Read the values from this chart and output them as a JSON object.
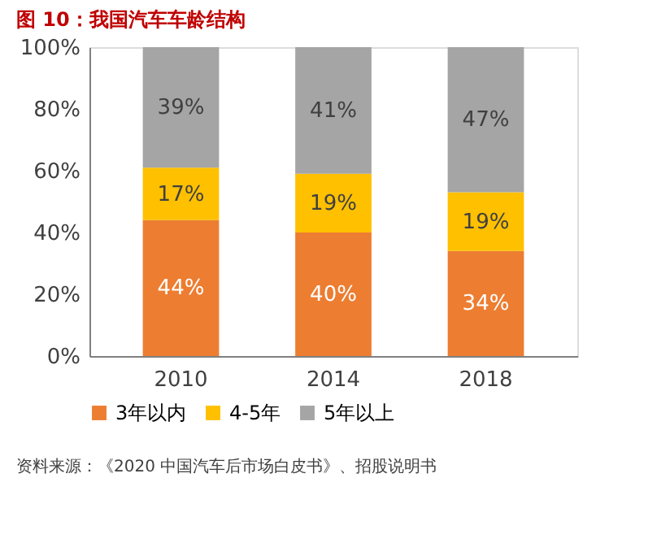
{
  "chart_data": {
    "type": "bar",
    "stacked": true,
    "title": "图 10：我国汽车车龄结构",
    "categories": [
      "2010",
      "2014",
      "2018"
    ],
    "series": [
      {
        "name": "3年以内",
        "color": "#ed7d31",
        "values": [
          44,
          40,
          34
        ],
        "value_labels": [
          "44%",
          "40%",
          "34%"
        ]
      },
      {
        "name": "4-5年",
        "color": "#ffc000",
        "values": [
          17,
          19,
          19
        ],
        "value_labels": [
          "17%",
          "19%",
          "19%"
        ]
      },
      {
        "name": "5年以上",
        "color": "#a5a5a5",
        "values": [
          39,
          41,
          47
        ],
        "value_labels": [
          "39%",
          "41%",
          "47%"
        ]
      }
    ],
    "ylim": [
      0,
      100
    ],
    "yticks": [
      {
        "value": 0,
        "label": "0%"
      },
      {
        "value": 20,
        "label": "20%"
      },
      {
        "value": 40,
        "label": "40%"
      },
      {
        "value": 60,
        "label": "60%"
      },
      {
        "value": 80,
        "label": "80%"
      },
      {
        "value": 100,
        "label": "100%"
      }
    ],
    "grid": false,
    "legend": "bottom",
    "annotations": [
      "资料来源：《2020 中国汽车后市场白皮书》、招股说明书"
    ]
  }
}
